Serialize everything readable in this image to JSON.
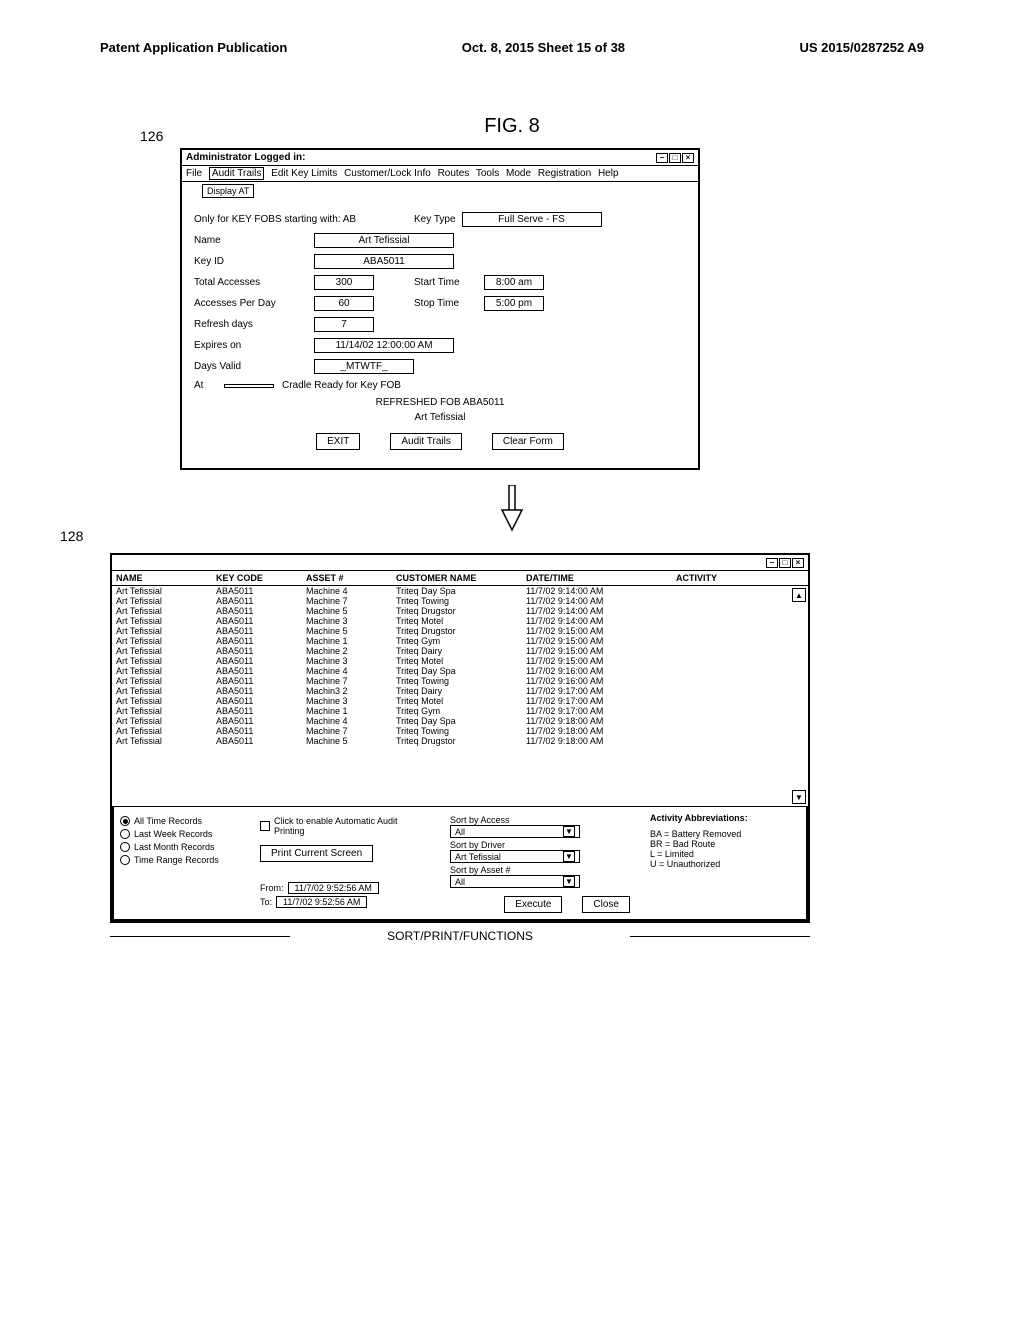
{
  "header": {
    "left": "Patent Application Publication",
    "center": "Oct. 8, 2015   Sheet 15 of 38",
    "right": "US 2015/0287252 A9"
  },
  "figure_title": "FIG. 8",
  "ref_126": "126",
  "ref_128": "128",
  "window1": {
    "title": "Administrator Logged in:",
    "menu": [
      "File",
      "Audit Trails",
      "Edit Key Limits",
      "Customer/Lock Info",
      "Routes",
      "Tools",
      "Mode",
      "Registration",
      "Help"
    ],
    "submenu": "Display AT",
    "note": "Only for KEY FOBS starting with: AB",
    "key_type_label": "Key Type",
    "key_type_value": "Full Serve - FS",
    "name_label": "Name",
    "name_value": "Art Tefissial",
    "keyid_label": "Key ID",
    "keyid_value": "ABA5011",
    "total_label": "Total Accesses",
    "total_value": "300",
    "start_label": "Start Time",
    "start_value": "8:00 am",
    "perday_label": "Accesses Per Day",
    "perday_value": "60",
    "stop_label": "Stop Time",
    "stop_value": "5:00 pm",
    "refresh_label": "Refresh days",
    "refresh_value": "7",
    "expires_label": "Expires on",
    "expires_value": "11/14/02 12:00:00 AM",
    "daysvalid_label": "Days Valid",
    "daysvalid_value": "_MTWTF_",
    "at_label": "At",
    "cradle_text": "Cradle Ready for Key FOB",
    "refreshed_text": "REFRESHED FOB ABA5011",
    "art_text": "Art Tefissial",
    "exit_btn": "EXIT",
    "audit_btn": "Audit Trails",
    "clear_btn": "Clear Form"
  },
  "table": {
    "columns": [
      "NAME",
      "KEY CODE",
      "ASSET #",
      "CUSTOMER NAME",
      "DATE/TIME",
      "ACTIVITY"
    ],
    "rows": [
      [
        "Art Tefissial",
        "ABA5011",
        "Machine 4",
        "Triteq Day Spa",
        "11/7/02 9:14:00 AM",
        ""
      ],
      [
        "Art Tefissial",
        "ABA5011",
        "Machine 7",
        "Triteq Towing",
        "11/7/02 9:14:00 AM",
        ""
      ],
      [
        "Art Tefissial",
        "ABA5011",
        "Machine 5",
        "Triteq Drugstor",
        "11/7/02 9:14:00 AM",
        ""
      ],
      [
        "Art Tefissial",
        "ABA5011",
        "Machine 3",
        "Triteq Motel",
        "11/7/02 9:14:00 AM",
        ""
      ],
      [
        "Art Tefissial",
        "ABA5011",
        "Machine 5",
        "Triteq Drugstor",
        "11/7/02 9:15:00 AM",
        ""
      ],
      [
        "Art Tefissial",
        "ABA5011",
        "Machine 1",
        "Triteq Gym",
        "11/7/02 9:15:00 AM",
        ""
      ],
      [
        "Art Tefissial",
        "ABA5011",
        "Machine 2",
        "Triteq Dairy",
        "11/7/02 9:15:00 AM",
        ""
      ],
      [
        "Art Tefissial",
        "ABA5011",
        "Machine 3",
        "Triteq Motel",
        "11/7/02 9:15:00 AM",
        ""
      ],
      [
        "Art Tefissial",
        "ABA5011",
        "Machine 4",
        "Triteq Day Spa",
        "11/7/02 9:16:00 AM",
        ""
      ],
      [
        "Art Tefissial",
        "ABA5011",
        "Machine 7",
        "Triteq Towing",
        "11/7/02 9:16:00 AM",
        ""
      ],
      [
        "Art Tefissial",
        "ABA5011",
        "Machin3 2",
        "Triteq Dairy",
        "11/7/02 9:17:00 AM",
        ""
      ],
      [
        "Art Tefissial",
        "ABA5011",
        "Machine 3",
        "Triteq Motel",
        "11/7/02 9:17:00 AM",
        ""
      ],
      [
        "Art Tefissial",
        "ABA5011",
        "Machine 1",
        "Triteq Gym",
        "11/7/02 9:17:00 AM",
        ""
      ],
      [
        "Art Tefissial",
        "ABA5011",
        "Machine 4",
        "Triteq Day Spa",
        "11/7/02 9:18:00 AM",
        ""
      ],
      [
        "Art Tefissial",
        "ABA5011",
        "Machine 7",
        "Triteq Towing",
        "11/7/02 9:18:00 AM",
        ""
      ],
      [
        "Art Tefissial",
        "ABA5011",
        "Machine 5",
        "Triteq Drugstor",
        "11/7/02 9:18:00 AM",
        ""
      ]
    ]
  },
  "footer": {
    "radio_alltime": "All Time Records",
    "radio_lastweek": "Last Week Records",
    "radio_lastmonth": "Last Month Records",
    "radio_timerange": "Time Range Records",
    "auto_print": "Click to enable Automatic Audit Printing",
    "print_btn": "Print Current Screen",
    "sort_access_label": "Sort by Access",
    "sort_access_value": "All",
    "sort_driver_label": "Sort by Driver",
    "sort_driver_value": "Art Tefissial",
    "sort_asset_label": "Sort by Asset #",
    "sort_asset_value": "All",
    "abbrev_title": "Activity Abbreviations:",
    "abbrev_ba": "BA = Battery Removed",
    "abbrev_br": "BR = Bad Route",
    "abbrev_l": "L = Limited",
    "abbrev_u": "U = Unauthorized",
    "from_label": "From:",
    "from_value": "11/7/02  9:52:56 AM",
    "to_label": "To:",
    "to_value": "11/7/02  9:52:56 AM",
    "execute_btn": "Execute",
    "close_btn": "Close"
  },
  "sort_print_label": "SORT/PRINT/FUNCTIONS"
}
